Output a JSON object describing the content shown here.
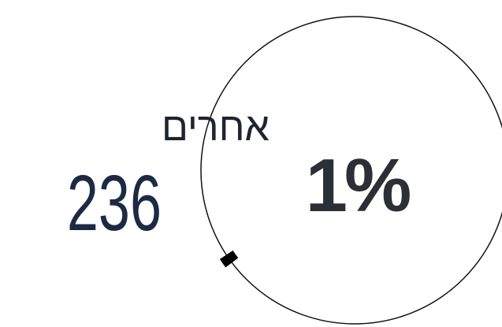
{
  "chart_data": {
    "type": "gauge",
    "label": "אחרים",
    "count": 236,
    "value": 1,
    "value_label": "1%",
    "color": "#000000"
  }
}
